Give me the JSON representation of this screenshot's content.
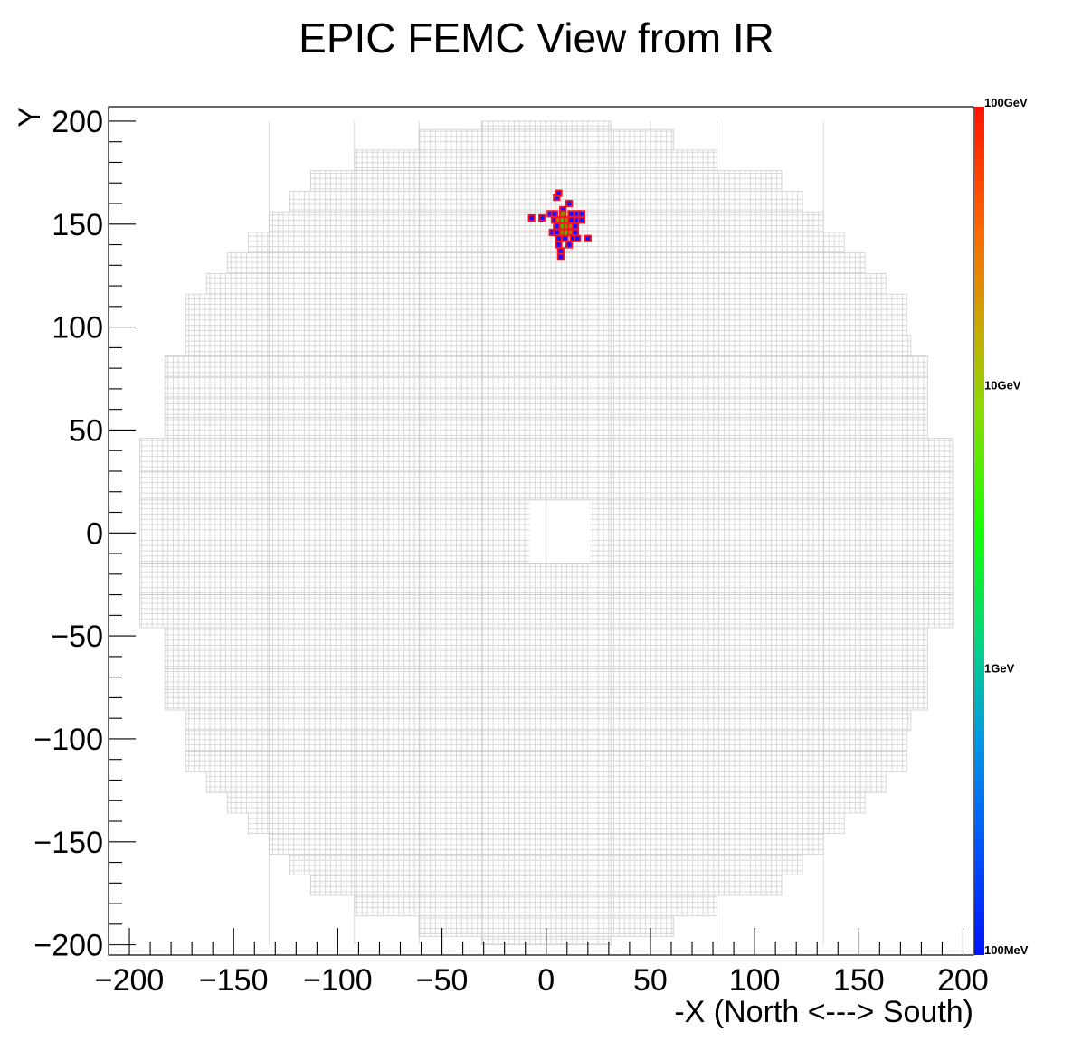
{
  "chart_data": {
    "type": "heatmap",
    "title": "EPIC FEMC View from IR",
    "xlabel": "-X (North <---> South)",
    "ylabel": "Y",
    "xlim": [
      -210,
      205
    ],
    "ylim": [
      -205,
      207
    ],
    "x_ticks": [
      -200,
      -150,
      -100,
      -50,
      0,
      50,
      100,
      150,
      200
    ],
    "x_tick_labels": [
      "−200",
      "−150",
      "−100",
      "−50",
      "0",
      "50",
      "100",
      "150",
      "200"
    ],
    "y_ticks": [
      200,
      150,
      100,
      50,
      0,
      -50,
      -100,
      -150,
      -200
    ],
    "y_tick_labels": [
      "200",
      "150",
      "100",
      "50",
      "0",
      "−50",
      "−100",
      "−150",
      "−200"
    ],
    "colorbar": {
      "scale": "log",
      "min_label": "100MeV",
      "labels": [
        "100GeV",
        "10GeV",
        "1GeV",
        "100MeV"
      ]
    },
    "detector": {
      "outline_rows": [
        {
          "y": [
            196,
            200
          ],
          "xmin": -31,
          "xmax": 31
        },
        {
          "y": [
            186,
            196
          ],
          "xmin": -61,
          "xmax": 61
        },
        {
          "y": [
            176,
            186
          ],
          "xmin": -92,
          "xmax": 82
        },
        {
          "y": [
            166,
            176
          ],
          "xmin": -113,
          "xmax": 113
        },
        {
          "y": [
            156,
            166
          ],
          "xmin": -123,
          "xmax": 123
        },
        {
          "y": [
            146,
            156
          ],
          "xmin": -133,
          "xmax": 133
        },
        {
          "y": [
            136,
            146
          ],
          "xmin": -143,
          "xmax": 143
        },
        {
          "y": [
            126,
            136
          ],
          "xmin": -153,
          "xmax": 153
        },
        {
          "y": [
            116,
            126
          ],
          "xmin": -163,
          "xmax": 163
        },
        {
          "y": [
            106,
            116
          ],
          "xmin": -173,
          "xmax": 173
        },
        {
          "y": [
            96,
            106
          ],
          "xmin": -173,
          "xmax": 173
        },
        {
          "y": [
            86,
            96
          ],
          "xmin": -173,
          "xmax": 175
        },
        {
          "y": [
            76,
            86
          ],
          "xmin": -183,
          "xmax": 183
        },
        {
          "y": [
            66,
            76
          ],
          "xmin": -183,
          "xmax": 183
        },
        {
          "y": [
            56,
            66
          ],
          "xmin": -183,
          "xmax": 183
        },
        {
          "y": [
            46,
            56
          ],
          "xmin": -183,
          "xmax": 183
        },
        {
          "y": [
            -46,
            46
          ],
          "xmin": -195,
          "xmax": 195
        },
        {
          "y": [
            -56,
            -46
          ],
          "xmin": -183,
          "xmax": 183
        },
        {
          "y": [
            -66,
            -56
          ],
          "xmin": -183,
          "xmax": 183
        },
        {
          "y": [
            -76,
            -66
          ],
          "xmin": -183,
          "xmax": 183
        },
        {
          "y": [
            -86,
            -76
          ],
          "xmin": -183,
          "xmax": 183
        },
        {
          "y": [
            -96,
            -86
          ],
          "xmin": -173,
          "xmax": 175
        },
        {
          "y": [
            -106,
            -96
          ],
          "xmin": -173,
          "xmax": 173
        },
        {
          "y": [
            -116,
            -106
          ],
          "xmin": -173,
          "xmax": 173
        },
        {
          "y": [
            -126,
            -116
          ],
          "xmin": -163,
          "xmax": 163
        },
        {
          "y": [
            -136,
            -126
          ],
          "xmin": -153,
          "xmax": 153
        },
        {
          "y": [
            -146,
            -136
          ],
          "xmin": -143,
          "xmax": 143
        },
        {
          "y": [
            -156,
            -146
          ],
          "xmin": -133,
          "xmax": 133
        },
        {
          "y": [
            -166,
            -156
          ],
          "xmin": -123,
          "xmax": 123
        },
        {
          "y": [
            -176,
            -166
          ],
          "xmin": -113,
          "xmax": 113
        },
        {
          "y": [
            -186,
            -176
          ],
          "xmin": -92,
          "xmax": 82
        },
        {
          "y": [
            -196,
            -186
          ],
          "xmin": -61,
          "xmax": 61
        },
        {
          "y": [
            -200,
            -196
          ],
          "xmin": -31,
          "xmax": 31
        }
      ],
      "beam_hole": {
        "x": [
          -8,
          21
        ],
        "y": [
          -15,
          16
        ]
      },
      "cell_size": 2.5
    },
    "hits": [
      {
        "x": 5,
        "y": 163,
        "level": "low"
      },
      {
        "x": 6,
        "y": 165,
        "level": "low"
      },
      {
        "x": 11,
        "y": 160,
        "level": "low"
      },
      {
        "x": 8,
        "y": 157,
        "level": "low"
      },
      {
        "x": -7,
        "y": 153,
        "level": "low"
      },
      {
        "x": -2,
        "y": 153,
        "level": "low"
      },
      {
        "x": 2,
        "y": 155,
        "level": "low"
      },
      {
        "x": 4,
        "y": 155,
        "level": "low"
      },
      {
        "x": 8,
        "y": 155,
        "level": "mid"
      },
      {
        "x": 12,
        "y": 155,
        "level": "low"
      },
      {
        "x": 15,
        "y": 155,
        "level": "low"
      },
      {
        "x": 17,
        "y": 155,
        "level": "low"
      },
      {
        "x": 4,
        "y": 152,
        "level": "low"
      },
      {
        "x": 6,
        "y": 152,
        "level": "mid"
      },
      {
        "x": 8,
        "y": 152,
        "level": "high"
      },
      {
        "x": 10,
        "y": 152,
        "level": "mid"
      },
      {
        "x": 12,
        "y": 152,
        "level": "low"
      },
      {
        "x": 15,
        "y": 152,
        "level": "low"
      },
      {
        "x": 17,
        "y": 152,
        "level": "low"
      },
      {
        "x": 5,
        "y": 149,
        "level": "low"
      },
      {
        "x": 8,
        "y": 149,
        "level": "high"
      },
      {
        "x": 10,
        "y": 149,
        "level": "mid"
      },
      {
        "x": 12,
        "y": 149,
        "level": "mid"
      },
      {
        "x": 14,
        "y": 149,
        "level": "low"
      },
      {
        "x": 3,
        "y": 146,
        "level": "low"
      },
      {
        "x": 5,
        "y": 146,
        "level": "low"
      },
      {
        "x": 8,
        "y": 146,
        "level": "mid"
      },
      {
        "x": 10,
        "y": 146,
        "level": "high"
      },
      {
        "x": 12,
        "y": 146,
        "level": "mid"
      },
      {
        "x": 14,
        "y": 146,
        "level": "low"
      },
      {
        "x": 6,
        "y": 143,
        "level": "low"
      },
      {
        "x": 9,
        "y": 143,
        "level": "low"
      },
      {
        "x": 13,
        "y": 143,
        "level": "low"
      },
      {
        "x": 15,
        "y": 143,
        "level": "low"
      },
      {
        "x": 20,
        "y": 143,
        "level": "low"
      },
      {
        "x": 6,
        "y": 140,
        "level": "low"
      },
      {
        "x": 11,
        "y": 140,
        "level": "low"
      },
      {
        "x": 7,
        "y": 137,
        "level": "low"
      },
      {
        "x": 7,
        "y": 134,
        "level": "low"
      }
    ],
    "grid": false,
    "legend": "colorbar-right"
  }
}
